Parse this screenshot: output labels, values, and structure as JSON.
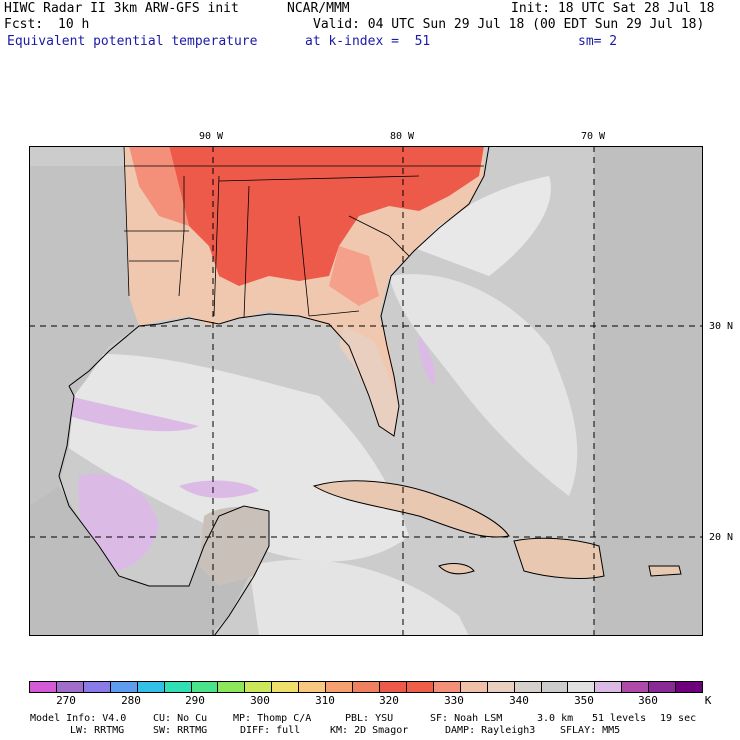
{
  "header": {
    "line1_left": "HIWC Radar II 3km ARW-GFS init",
    "line1_mid": "NCAR/MMM",
    "line1_right": "Init: 18 UTC Sat 28 Jul 18",
    "fcst_label": "Fcst:",
    "fcst_value": "10 h",
    "valid": "Valid: 04 UTC Sun 29 Jul 18 (00 EDT Sun 29 Jul 18)",
    "field": "Equivalent potential temperature",
    "level": "at k-index =  51",
    "smoothing": "sm= 2"
  },
  "map": {
    "lon_labels": [
      "90 W",
      "80 W",
      "70 W"
    ],
    "lat_labels": [
      "30 N",
      "20 N"
    ]
  },
  "colorbar": {
    "colors": [
      "#d45ad6",
      "#a06ec8",
      "#8a7aea",
      "#5f9cf0",
      "#34bfe6",
      "#30e0b4",
      "#4ce48a",
      "#8ce85a",
      "#cce85a",
      "#eee06a",
      "#f8c880",
      "#f6a070",
      "#f08060",
      "#ee5a4a",
      "#ee5e48",
      "#f4907a",
      "#f0c0a8",
      "#e8cfc0",
      "#d6d0cc",
      "#cccccc",
      "#e0e0e0",
      "#dcbae6",
      "#b04aa8",
      "#8a2a96",
      "#6e007e"
    ],
    "labels": [
      "270",
      "280",
      "290",
      "300",
      "310",
      "320",
      "330",
      "340",
      "350",
      "360",
      "K"
    ]
  },
  "footer": {
    "line1": [
      "Model Info: V4.0",
      "CU: No Cu",
      "MP: Thomp C/A",
      "PBL: YSU",
      "SF: Noah LSM",
      "3.0 km",
      "51 levels",
      "19 sec"
    ],
    "line2": [
      "LW: RRTMG",
      "SW: RRTMG",
      "DIFF: full",
      "KM: 2D Smagor",
      "DAMP: Rayleigh3",
      "SFLAY: MM5"
    ]
  }
}
